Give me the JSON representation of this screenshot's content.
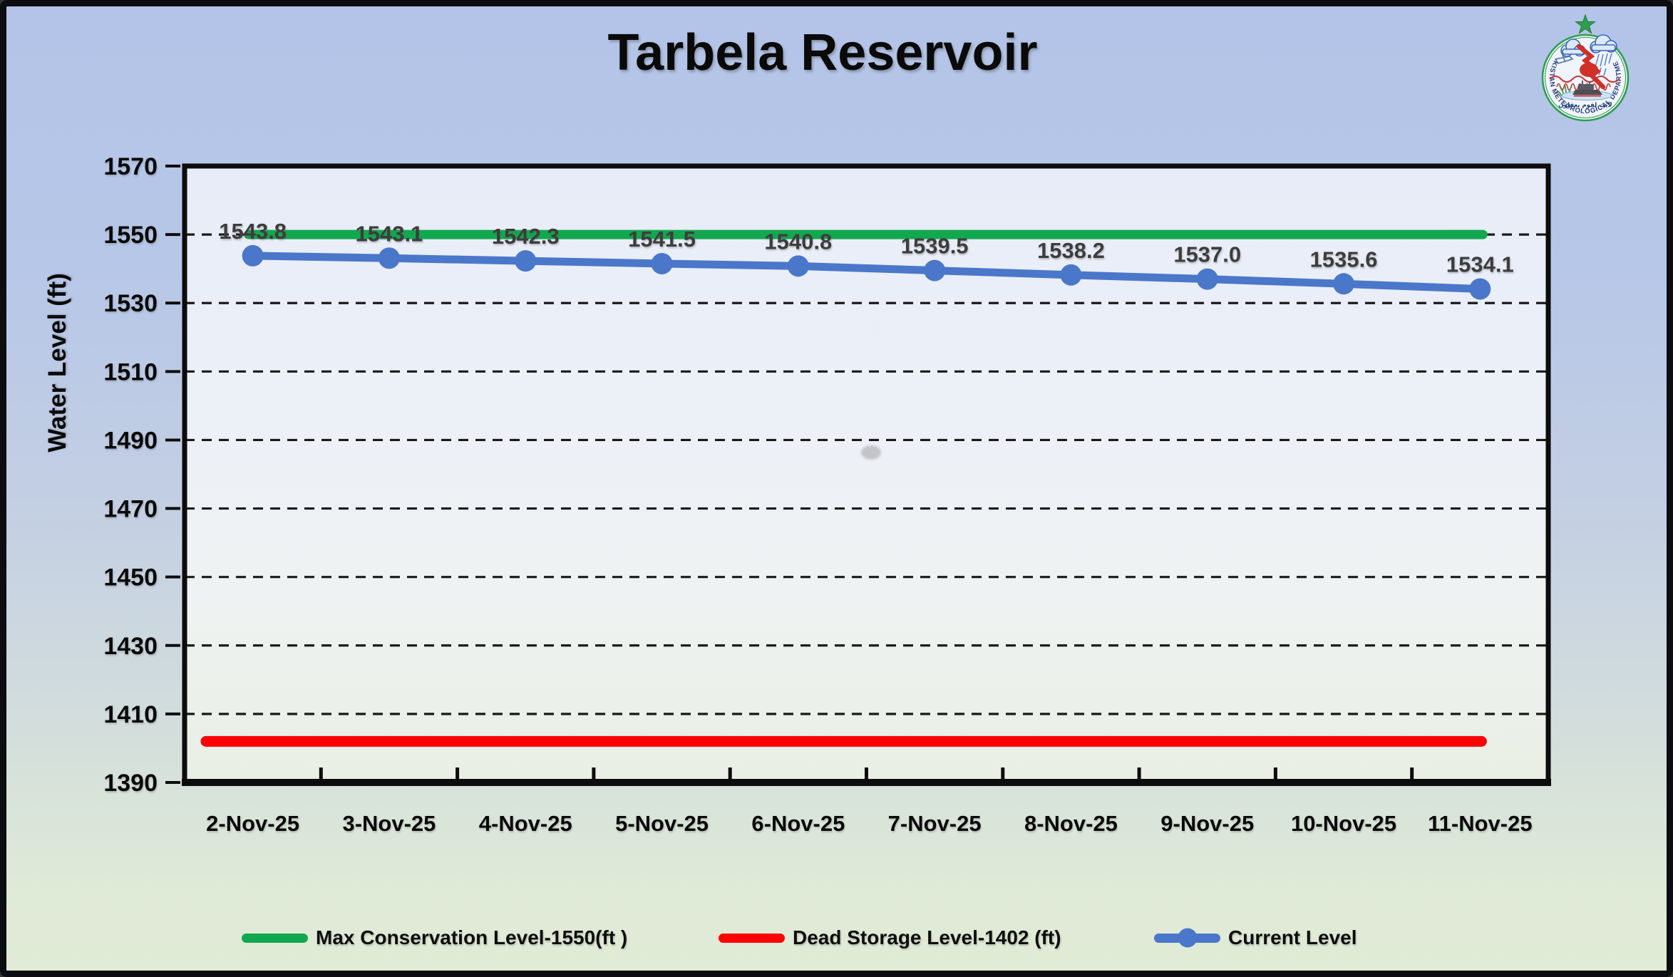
{
  "page_title": "Tarbela Reservoir",
  "logo": {
    "text": "PAKISTAN METEOROLOGICAL DEPARTMENT",
    "arabic": "لآيٰت لقوم يعقلون",
    "star_color": "#2f9e4e",
    "ring_color": "#2f9e4e",
    "text_color": "#263c7a"
  },
  "chart_data": {
    "type": "line",
    "title": "Tarbela Reservoir",
    "xlabel": "",
    "ylabel": "Water Level (ft)",
    "ylim": [
      1390,
      1570
    ],
    "ytick_step": 20,
    "grid": "horizontal-dashed",
    "legend_position": "bottom",
    "categories": [
      "2-Nov-25",
      "3-Nov-25",
      "4-Nov-25",
      "5-Nov-25",
      "6-Nov-25",
      "7-Nov-25",
      "8-Nov-25",
      "9-Nov-25",
      "10-Nov-25",
      "11-Nov-25"
    ],
    "series": [
      {
        "name": "Max Conservation Level-1550(ft )",
        "type": "reference-line",
        "value": 1550,
        "color": "#12a84f"
      },
      {
        "name": "Dead Storage Level-1402 (ft)",
        "type": "reference-line",
        "value": 1402,
        "color": "#fb0205"
      },
      {
        "name": "Current Level",
        "type": "line-with-markers",
        "color": "#4a77c9",
        "marker": "circle",
        "values": [
          1543.8,
          1543.1,
          1542.3,
          1541.5,
          1540.8,
          1539.5,
          1538.2,
          1537.0,
          1535.6,
          1534.1
        ],
        "labels": [
          "1543.8",
          "1543.1",
          "1542.3",
          "1541.5",
          "1540.8",
          "1539.5",
          "1538.2",
          "1537.0",
          "1535.6",
          "1534.1"
        ]
      }
    ],
    "data_label_color": "#3d3d3d",
    "gridline_color": "#1a1a1a"
  }
}
